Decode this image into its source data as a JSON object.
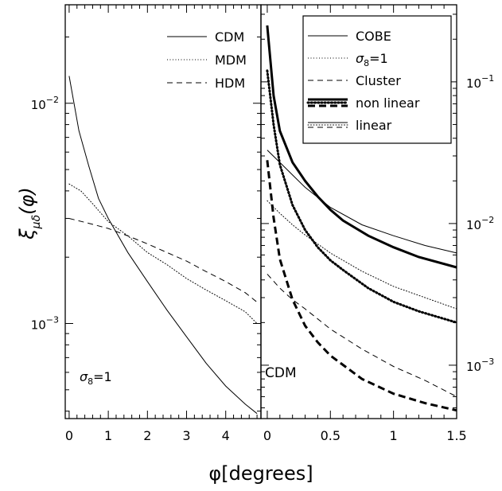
{
  "figure": {
    "ylabel": "ξ",
    "ylabel_sub": "μδ",
    "ylabel_tail": "(φ)",
    "xlabel": "φ[degrees]"
  },
  "chart_data": [
    {
      "type": "line",
      "panel": "left",
      "xlim": [
        -0.1,
        4.9
      ],
      "ylim": [
        0.00037,
        0.028
      ],
      "yscale": "log",
      "x_ticks": [
        "0",
        "1",
        "2",
        "3",
        "4"
      ],
      "y_ticks": [
        "10−3",
        "10−2"
      ],
      "annotation": "σ8=1",
      "legend_position": "top-right",
      "series": [
        {
          "name": "CDM",
          "style": "solid",
          "x": [
            0,
            0.25,
            0.5,
            0.75,
            1,
            1.5,
            2,
            2.5,
            3,
            3.5,
            4,
            4.5,
            4.8
          ],
          "y": [
            0.0133,
            0.0075,
            0.0052,
            0.0037,
            0.003,
            0.0021,
            0.00155,
            0.00115,
            0.00087,
            0.00066,
            0.00052,
            0.00043,
            0.00039
          ]
        },
        {
          "name": "MDM",
          "style": "dotted",
          "x": [
            0,
            0.3,
            0.6,
            1,
            1.5,
            2,
            2.5,
            3,
            3.5,
            4,
            4.5,
            4.8
          ],
          "y": [
            0.0043,
            0.004,
            0.0035,
            0.0029,
            0.0025,
            0.0021,
            0.00185,
            0.0016,
            0.00142,
            0.00127,
            0.00113,
            0.001
          ]
        },
        {
          "name": "HDM",
          "style": "dashed",
          "x": [
            0,
            0.5,
            1,
            1.5,
            2,
            2.5,
            3,
            3.5,
            4,
            4.5,
            4.8
          ],
          "y": [
            0.003,
            0.00285,
            0.0027,
            0.0025,
            0.0023,
            0.0021,
            0.00192,
            0.00172,
            0.00155,
            0.00138,
            0.00125
          ]
        }
      ]
    },
    {
      "type": "line",
      "panel": "right",
      "xlim": [
        -0.05,
        1.5
      ],
      "ylim": [
        0.00042,
        0.35
      ],
      "yscale": "log",
      "x_ticks": [
        "0",
        "0.5",
        "1",
        "1.5"
      ],
      "y_ticks": [
        "10−3",
        "10−2",
        "10−1"
      ],
      "annotation": "CDM",
      "legend_position": "top-right",
      "legend": [
        {
          "label": "COBE",
          "style": "solid"
        },
        {
          "label": "σ8=1",
          "style": "dotted"
        },
        {
          "label": "Cluster",
          "style": "dashed"
        },
        {
          "label": "non linear",
          "style": "thick"
        },
        {
          "label": "linear",
          "style": "thin"
        }
      ],
      "series": [
        {
          "group": "COBE",
          "weight": "thick",
          "style": "solid",
          "x": [
            0,
            0.05,
            0.1,
            0.2,
            0.3,
            0.4,
            0.5,
            0.6,
            0.8,
            1.0,
            1.2,
            1.5
          ],
          "y": [
            0.25,
            0.08,
            0.045,
            0.027,
            0.02,
            0.0155,
            0.0125,
            0.0105,
            0.0082,
            0.0068,
            0.0058,
            0.0049
          ]
        },
        {
          "group": "COBE",
          "weight": "thin",
          "style": "solid",
          "x": [
            0,
            0.1,
            0.2,
            0.3,
            0.5,
            0.75,
            1.0,
            1.25,
            1.5
          ],
          "y": [
            0.033,
            0.027,
            0.022,
            0.018,
            0.013,
            0.0098,
            0.0082,
            0.007,
            0.0062
          ]
        },
        {
          "group": "σ8=1",
          "weight": "thick",
          "style": "dotted",
          "x": [
            0,
            0.05,
            0.1,
            0.2,
            0.3,
            0.4,
            0.5,
            0.6,
            0.8,
            1.0,
            1.2,
            1.5
          ],
          "y": [
            0.12,
            0.05,
            0.026,
            0.0135,
            0.009,
            0.0068,
            0.0055,
            0.0047,
            0.0035,
            0.0028,
            0.0024,
            0.002
          ]
        },
        {
          "group": "σ8=1",
          "weight": "thin",
          "style": "dotted",
          "x": [
            0,
            0.1,
            0.2,
            0.3,
            0.5,
            0.75,
            1.0,
            1.25,
            1.5
          ],
          "y": [
            0.0145,
            0.0118,
            0.0098,
            0.0083,
            0.0062,
            0.0046,
            0.0036,
            0.003,
            0.0025
          ]
        },
        {
          "group": "Cluster",
          "weight": "thick",
          "style": "dashed",
          "x": [
            0,
            0.05,
            0.1,
            0.2,
            0.3,
            0.4,
            0.5,
            0.75,
            1.0,
            1.25,
            1.5
          ],
          "y": [
            0.028,
            0.011,
            0.0056,
            0.0029,
            0.0019,
            0.00145,
            0.00117,
            0.0008,
            0.00063,
            0.00054,
            0.00048
          ]
        },
        {
          "group": "Cluster",
          "weight": "thin",
          "style": "dashed",
          "x": [
            0,
            0.1,
            0.2,
            0.3,
            0.5,
            0.75,
            1.0,
            1.25,
            1.5
          ],
          "y": [
            0.0044,
            0.0035,
            0.0029,
            0.0025,
            0.0018,
            0.0013,
            0.00098,
            0.00078,
            0.0006
          ]
        }
      ]
    }
  ]
}
